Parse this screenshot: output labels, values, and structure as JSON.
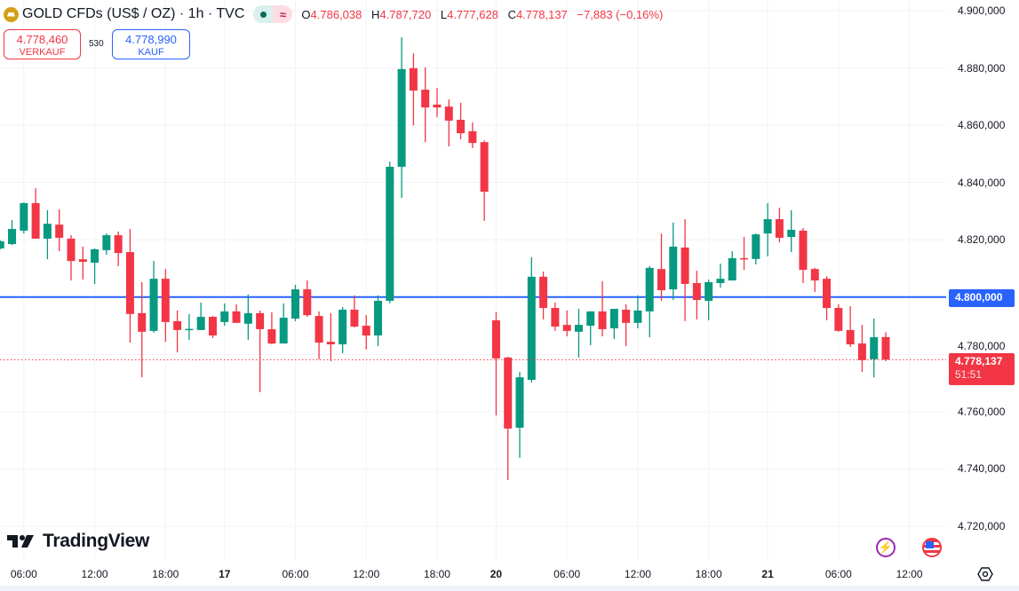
{
  "header": {
    "title": "GOLD CFDs (US$ / OZ) · 1h · TVC",
    "status_icons": [
      "market-open-dot-icon",
      "approx-data-icon"
    ],
    "ohlc": {
      "o_label": "O",
      "o": "4.786,038",
      "h_label": "H",
      "h": "4.787,720",
      "l_label": "L",
      "l": "4.777,628",
      "c_label": "C",
      "c": "4.778,137",
      "change": "−7,883 (−0,16%)"
    }
  },
  "trade": {
    "sell_price": "4.778,460",
    "sell_label": "VERKAUF",
    "spread": "530",
    "buy_price": "4.778,990",
    "buy_label": "KAUF"
  },
  "price_labels": {
    "level": "4.800,000",
    "last": "4.778,137",
    "countdown": "51:51"
  },
  "logo": "TradingView",
  "colors": {
    "up": "#089981",
    "down": "#f23645",
    "level_line": "#2962ff",
    "last_line": "#f23645"
  },
  "chart_data": {
    "type": "candlestick",
    "title": "GOLD CFDs (US$ / OZ) · 1h · TVC",
    "ylim": [
      4713,
      4905
    ],
    "grid": true,
    "yticks": [
      {
        "value": 4900,
        "label": "4.900,000"
      },
      {
        "value": 4880,
        "label": "4.880,000"
      },
      {
        "value": 4860,
        "label": "4.860,000"
      },
      {
        "value": 4840,
        "label": "4.840,000"
      },
      {
        "value": 4820,
        "label": "4.820,000"
      },
      {
        "value": 4780,
        "label": "4.780,000"
      },
      {
        "value": 4760,
        "label": "4.760,000"
      },
      {
        "value": 4740,
        "label": "4.740,000"
      },
      {
        "value": 4720,
        "label": "4.720,000"
      }
    ],
    "xticks": [
      {
        "bar": 2,
        "label": "06:00"
      },
      {
        "bar": 8,
        "label": "12:00"
      },
      {
        "bar": 14,
        "label": "18:00"
      },
      {
        "bar": 19,
        "label": "17",
        "day": true
      },
      {
        "bar": 25,
        "label": "06:00"
      },
      {
        "bar": 31,
        "label": "12:00"
      },
      {
        "bar": 37,
        "label": "18:00"
      },
      {
        "bar": 42,
        "label": "20",
        "day": true
      },
      {
        "bar": 48,
        "label": "06:00"
      },
      {
        "bar": 54,
        "label": "12:00"
      },
      {
        "bar": 60,
        "label": "18:00"
      },
      {
        "bar": 65,
        "label": "21",
        "day": true
      },
      {
        "bar": 71,
        "label": "06:00"
      },
      {
        "bar": 77,
        "label": "12:00"
      }
    ],
    "horizontal_line": 4800,
    "last_price": 4778.137,
    "candles_ohlc": [
      [
        4817.0,
        4819.8,
        4816.7,
        4819.5
      ],
      [
        4818.5,
        4826.9,
        4818.2,
        4823.8
      ],
      [
        4823.2,
        4833.1,
        4822.2,
        4832.8
      ],
      [
        4832.8,
        4838.0,
        4820.4,
        4820.4
      ],
      [
        4820.4,
        4830.3,
        4813.2,
        4825.6
      ],
      [
        4825.3,
        4830.6,
        4816.0,
        4820.7
      ],
      [
        4820.4,
        4821.6,
        4805.8,
        4812.6
      ],
      [
        4813.2,
        4817.6,
        4806.1,
        4812.3
      ],
      [
        4812.0,
        4817.0,
        4804.6,
        4816.7
      ],
      [
        4816.4,
        4822.2,
        4814.8,
        4821.6
      ],
      [
        4821.6,
        4822.9,
        4810.8,
        4815.4
      ],
      [
        4815.7,
        4823.8,
        4784.1,
        4794.1
      ],
      [
        4794.4,
        4805.2,
        4772.0,
        4787.9
      ],
      [
        4788.2,
        4812.6,
        4787.6,
        4806.4
      ],
      [
        4806.4,
        4809.8,
        4784.4,
        4791.3
      ],
      [
        4791.6,
        4795.3,
        4780.7,
        4788.5
      ],
      [
        4788.8,
        4794.1,
        4785.1,
        4788.9
      ],
      [
        4788.5,
        4798.1,
        4788.5,
        4793.1
      ],
      [
        4793.1,
        4793.4,
        4785.7,
        4786.6
      ],
      [
        4791.3,
        4797.8,
        4790.0,
        4795.0
      ],
      [
        4795.0,
        4797.5,
        4791.0,
        4791.0
      ],
      [
        4790.7,
        4800.9,
        4785.1,
        4794.4
      ],
      [
        4794.4,
        4795.3,
        4766.8,
        4788.8
      ],
      [
        4788.8,
        4794.7,
        4783.5,
        4783.8
      ],
      [
        4783.8,
        4797.8,
        4783.8,
        4792.8
      ],
      [
        4792.5,
        4804.3,
        4791.6,
        4802.7
      ],
      [
        4802.7,
        4805.8,
        4793.1,
        4793.7
      ],
      [
        4793.4,
        4795.0,
        4778.3,
        4784.1
      ],
      [
        4784.4,
        4794.4,
        4777.6,
        4783.5
      ],
      [
        4783.5,
        4796.5,
        4780.4,
        4795.6
      ],
      [
        4795.6,
        4800.6,
        4789.4,
        4789.7
      ],
      [
        4790.0,
        4793.7,
        4781.7,
        4786.6
      ],
      [
        4786.6,
        4800.6,
        4782.9,
        4798.7
      ],
      [
        4798.7,
        4847.3,
        4797.8,
        4845.5
      ],
      [
        4845.5,
        4890.7,
        4834.6,
        4879.6
      ],
      [
        4879.9,
        4885.1,
        4860.0,
        4872.1
      ],
      [
        4872.4,
        4880.2,
        4854.1,
        4866.2
      ],
      [
        4867.2,
        4873.0,
        4862.8,
        4866.2
      ],
      [
        4866.5,
        4869.0,
        4852.6,
        4861.6
      ],
      [
        4861.9,
        4867.8,
        4855.1,
        4857.2
      ],
      [
        4857.9,
        4861.0,
        4852.0,
        4853.8
      ],
      [
        4854.1,
        4854.7,
        4826.6,
        4836.8
      ],
      [
        4791.9,
        4794.7,
        4758.7,
        4778.6
      ],
      [
        4778.9,
        4779.2,
        4736.1,
        4754.1
      ],
      [
        4754.4,
        4773.9,
        4743.9,
        4772.0
      ],
      [
        4771.1,
        4813.9,
        4770.2,
        4807.1
      ],
      [
        4807.1,
        4808.9,
        4792.2,
        4796.2
      ],
      [
        4796.2,
        4798.1,
        4788.2,
        4789.7
      ],
      [
        4790.3,
        4795.3,
        4786.3,
        4788.2
      ],
      [
        4787.9,
        4795.9,
        4778.9,
        4790.3
      ],
      [
        4790.0,
        4795.0,
        4783.2,
        4795.0
      ],
      [
        4795.0,
        4805.5,
        4786.3,
        4788.8
      ],
      [
        4789.1,
        4795.9,
        4785.4,
        4795.9
      ],
      [
        4795.6,
        4797.5,
        4782.9,
        4791.0
      ],
      [
        4791.0,
        4800.6,
        4789.1,
        4795.3
      ],
      [
        4795.0,
        4810.8,
        4786.0,
        4810.2
      ],
      [
        4809.8,
        4822.2,
        4798.7,
        4802.4
      ],
      [
        4802.7,
        4826.0,
        4799.0,
        4817.6
      ],
      [
        4817.3,
        4827.2,
        4791.6,
        4804.6
      ],
      [
        4804.9,
        4809.2,
        4792.2,
        4799.0
      ],
      [
        4798.7,
        4806.1,
        4791.9,
        4805.2
      ],
      [
        4804.9,
        4811.7,
        4803.3,
        4806.4
      ],
      [
        4805.8,
        4816.0,
        4805.8,
        4813.6
      ],
      [
        4813.6,
        4821.0,
        4809.5,
        4813.3
      ],
      [
        4813.3,
        4822.2,
        4811.4,
        4821.9
      ],
      [
        4822.2,
        4832.8,
        4814.2,
        4827.2
      ],
      [
        4827.2,
        4831.2,
        4819.1,
        4820.7
      ],
      [
        4821.0,
        4830.3,
        4815.7,
        4823.5
      ],
      [
        4823.2,
        4824.1,
        4804.9,
        4809.5
      ],
      [
        4809.8,
        4810.2,
        4801.8,
        4805.8
      ],
      [
        4806.4,
        4807.3,
        4791.9,
        4796.2
      ],
      [
        4796.2,
        4797.5,
        4787.9,
        4788.2
      ],
      [
        4788.5,
        4796.8,
        4782.6,
        4783.5
      ],
      [
        4783.8,
        4790.3,
        4773.9,
        4778.0
      ],
      [
        4778.3,
        4792.5,
        4772.0,
        4786.0
      ],
      [
        4786.038,
        4787.72,
        4777.628,
        4778.137
      ]
    ]
  }
}
